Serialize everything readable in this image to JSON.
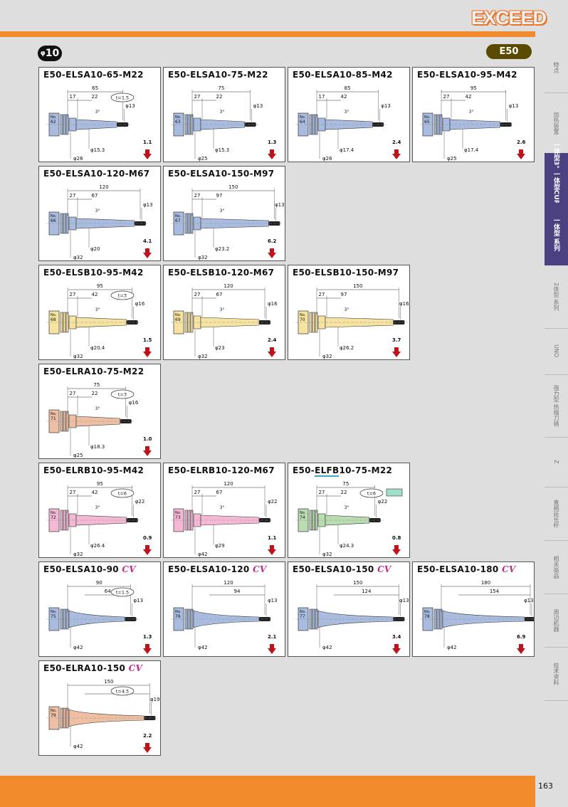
{
  "brand": "EXCEED",
  "diameter_badge": {
    "symbol": "φ",
    "value": "10"
  },
  "series_badge": "E50",
  "page_number": "163",
  "sidebar": [
    {
      "label": "特点",
      "active": false
    },
    {
      "label": "加热装置",
      "active": false
    },
    {
      "label": "一体型3° 一体型CURVE",
      "active": true
    },
    {
      "label": "一体型 系列",
      "active": true
    },
    {
      "label": "2体型 系列",
      "active": false
    },
    {
      "label": "UNO",
      "active": false
    },
    {
      "label": "强力型 热缩刀柄",
      "active": false
    },
    {
      "label": "Z",
      "active": false
    },
    {
      "label": "直柄延长杆",
      "active": false
    },
    {
      "label": "相关商品",
      "active": false
    },
    {
      "label": "周边机器",
      "active": false
    },
    {
      "label": "技术资料",
      "active": false
    }
  ],
  "cards": [
    {
      "title": "E50-ELSA10-65-M22",
      "cv": false,
      "no": "62",
      "color": "blue",
      "kind": "taper",
      "L": "65",
      "a": "17",
      "b": "22",
      "angle": "3°",
      "tip": "φ13",
      "d1": "φ15.3",
      "d2": "φ26",
      "t": "t=1.5",
      "weight": "1.1"
    },
    {
      "title": "E50-ELSA10-75-M22",
      "cv": false,
      "no": "63",
      "color": "blue",
      "kind": "taper",
      "L": "75",
      "a": "27",
      "b": "22",
      "angle": "3°",
      "tip": "φ13",
      "d1": "φ15.3",
      "d2": "φ25",
      "t": "",
      "weight": "1.3"
    },
    {
      "title": "E50-ELSA10-85-M42",
      "cv": false,
      "no": "64",
      "color": "blue",
      "kind": "taper",
      "L": "85",
      "a": "17",
      "b": "42",
      "angle": "3°",
      "tip": "φ13",
      "d1": "φ17.4",
      "d2": "φ26",
      "t": "",
      "weight": "2.4"
    },
    {
      "title": "E50-ELSA10-95-M42",
      "cv": false,
      "no": "65",
      "color": "blue",
      "kind": "taper",
      "L": "95",
      "a": "27",
      "b": "42",
      "angle": "3°",
      "tip": "φ13",
      "d1": "φ17.4",
      "d2": "φ25",
      "t": "",
      "weight": "2.6"
    },
    {
      "title": "E50-ELSA10-120-M67",
      "cv": false,
      "no": "66",
      "color": "blue",
      "kind": "taper",
      "L": "120",
      "a": "27",
      "b": "67",
      "angle": "3°",
      "tip": "φ13",
      "d1": "φ20",
      "d2": "φ32",
      "t": "",
      "weight": "4.1"
    },
    {
      "title": "E50-ELSA10-150-M97",
      "cv": false,
      "no": "67",
      "color": "blue",
      "kind": "taper",
      "L": "150",
      "a": "27",
      "b": "97",
      "angle": "3°",
      "tip": "φ13",
      "d1": "φ23.2",
      "d2": "φ32",
      "t": "",
      "weight": "6.2"
    },
    {
      "title": "E50-ELSB10-95-M42",
      "cv": false,
      "no": "68",
      "color": "yellow",
      "kind": "taper",
      "L": "95",
      "a": "27",
      "b": "42",
      "angle": "3°",
      "tip": "φ16",
      "d1": "φ20.4",
      "d2": "φ32",
      "t": "t=3",
      "weight": "1.5"
    },
    {
      "title": "E50-ELSB10-120-M67",
      "cv": false,
      "no": "69",
      "color": "yellow",
      "kind": "taper",
      "L": "120",
      "a": "27",
      "b": "67",
      "angle": "3°",
      "tip": "φ16",
      "d1": "φ23",
      "d2": "φ32",
      "t": "",
      "weight": "2.4"
    },
    {
      "title": "E50-ELSB10-150-M97",
      "cv": false,
      "no": "70",
      "color": "yellow",
      "kind": "taper",
      "L": "150",
      "a": "27",
      "b": "97",
      "angle": "3°",
      "tip": "φ16",
      "d1": "φ26.2",
      "d2": "φ32",
      "t": "",
      "weight": "3.7"
    },
    {
      "title": "E50-ELRA10-75-M22",
      "cv": false,
      "no": "71",
      "color": "salmon",
      "kind": "taper",
      "L": "75",
      "a": "27",
      "b": "22",
      "angle": "3°",
      "tip": "φ16",
      "d1": "φ18.3",
      "d2": "φ25",
      "t": "t=3",
      "weight": "1.0"
    },
    {
      "title": "E50-ELRB10-95-M42",
      "cv": false,
      "no": "72",
      "color": "pink",
      "kind": "taper",
      "L": "95",
      "a": "27",
      "b": "42",
      "angle": "3°",
      "tip": "φ22",
      "d1": "φ26.4",
      "d2": "φ32",
      "t": "t=6",
      "weight": "0.9"
    },
    {
      "title": "E50-ELRB10-120-M67",
      "cv": false,
      "no": "73",
      "color": "pink",
      "kind": "taper",
      "L": "120",
      "a": "27",
      "b": "67",
      "angle": "3°",
      "tip": "φ22",
      "d1": "φ29",
      "d2": "φ42",
      "t": "",
      "weight": "1.1"
    },
    {
      "title": "E50-ELFB10-75-M22",
      "cv": false,
      "no": "74",
      "color": "green",
      "kind": "taper",
      "L": "75",
      "a": "27",
      "b": "22",
      "angle": "3°",
      "tip": "φ22",
      "d1": "φ24.3",
      "d2": "φ32",
      "t": "t=6",
      "weight": "0.8",
      "underline": "ELFB"
    },
    {
      "title": "E50-ELSA10-90",
      "cv": true,
      "no": "75",
      "color": "blue",
      "kind": "curve",
      "L": "90",
      "a": "64",
      "b": "",
      "angle": "",
      "tip": "φ13",
      "d1": "",
      "d2": "φ42",
      "t": "t=1.5",
      "weight": "1.3"
    },
    {
      "title": "E50-ELSA10-120",
      "cv": true,
      "no": "76",
      "color": "blue",
      "kind": "curve",
      "L": "120",
      "a": "94",
      "b": "",
      "angle": "",
      "tip": "φ13",
      "d1": "",
      "d2": "φ42",
      "t": "",
      "weight": "2.1"
    },
    {
      "title": "E50-ELSA10-150",
      "cv": true,
      "no": "77",
      "color": "blue",
      "kind": "curve",
      "L": "150",
      "a": "124",
      "b": "",
      "angle": "",
      "tip": "φ13",
      "d1": "",
      "d2": "φ42",
      "t": "",
      "weight": "3.4"
    },
    {
      "title": "E50-ELSA10-180",
      "cv": true,
      "no": "78",
      "color": "blue",
      "kind": "curve",
      "L": "180",
      "a": "154",
      "b": "",
      "angle": "",
      "tip": "φ13",
      "d1": "",
      "d2": "φ42",
      "t": "",
      "weight": "6.9"
    },
    {
      "title": "E50-ELRA10-150",
      "cv": true,
      "no": "79",
      "color": "salmon",
      "kind": "curve",
      "L": "150",
      "a": "124",
      "b": "",
      "angle": "",
      "tip": "φ19",
      "d1": "",
      "d2": "φ42",
      "t": "t=4.5",
      "weight": "2.2"
    }
  ],
  "cv_label": "CV",
  "colors": {
    "blue": "#a9bce0",
    "yellow": "#f7e3a0",
    "salmon": "#efbfa3",
    "pink": "#f5b8d4",
    "green": "#b9dcb0",
    "orange": "#f28a2e",
    "sidebar_active": "#4c4180"
  }
}
